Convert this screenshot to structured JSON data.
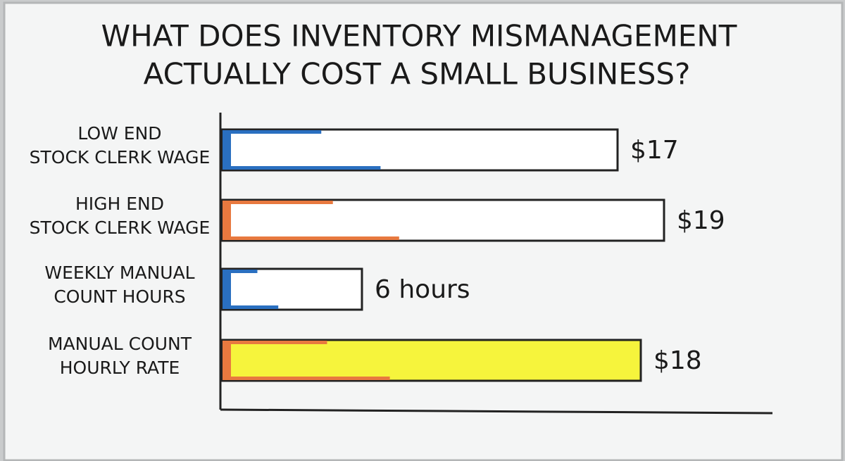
{
  "chart_data": {
    "type": "bar",
    "orientation": "horizontal",
    "title": [
      "WHAT DOES INVENTORY MISMANAGEMENT",
      "ACTUALLY COST A SMALL BUSINESS?"
    ],
    "categories": [
      [
        "LOW END",
        "STOCK CLERK WAGE"
      ],
      [
        "HIGH END",
        "STOCK CLERK WAGE"
      ],
      [
        "WEEKLY MANUAL",
        "COUNT HOURS"
      ],
      [
        "MANUAL COUNT",
        "HOURLY RATE"
      ]
    ],
    "values": [
      17,
      19,
      6,
      18
    ],
    "value_labels": [
      "$17",
      "$19",
      "6 hours",
      "$18"
    ],
    "colors": [
      "#ffffff",
      "#ffffff",
      "#ffffff",
      "#f6f43c"
    ],
    "accent_colors": [
      "#2a6fc0",
      "#e8793f",
      "#2a6fc0",
      "#e8793f"
    ]
  }
}
